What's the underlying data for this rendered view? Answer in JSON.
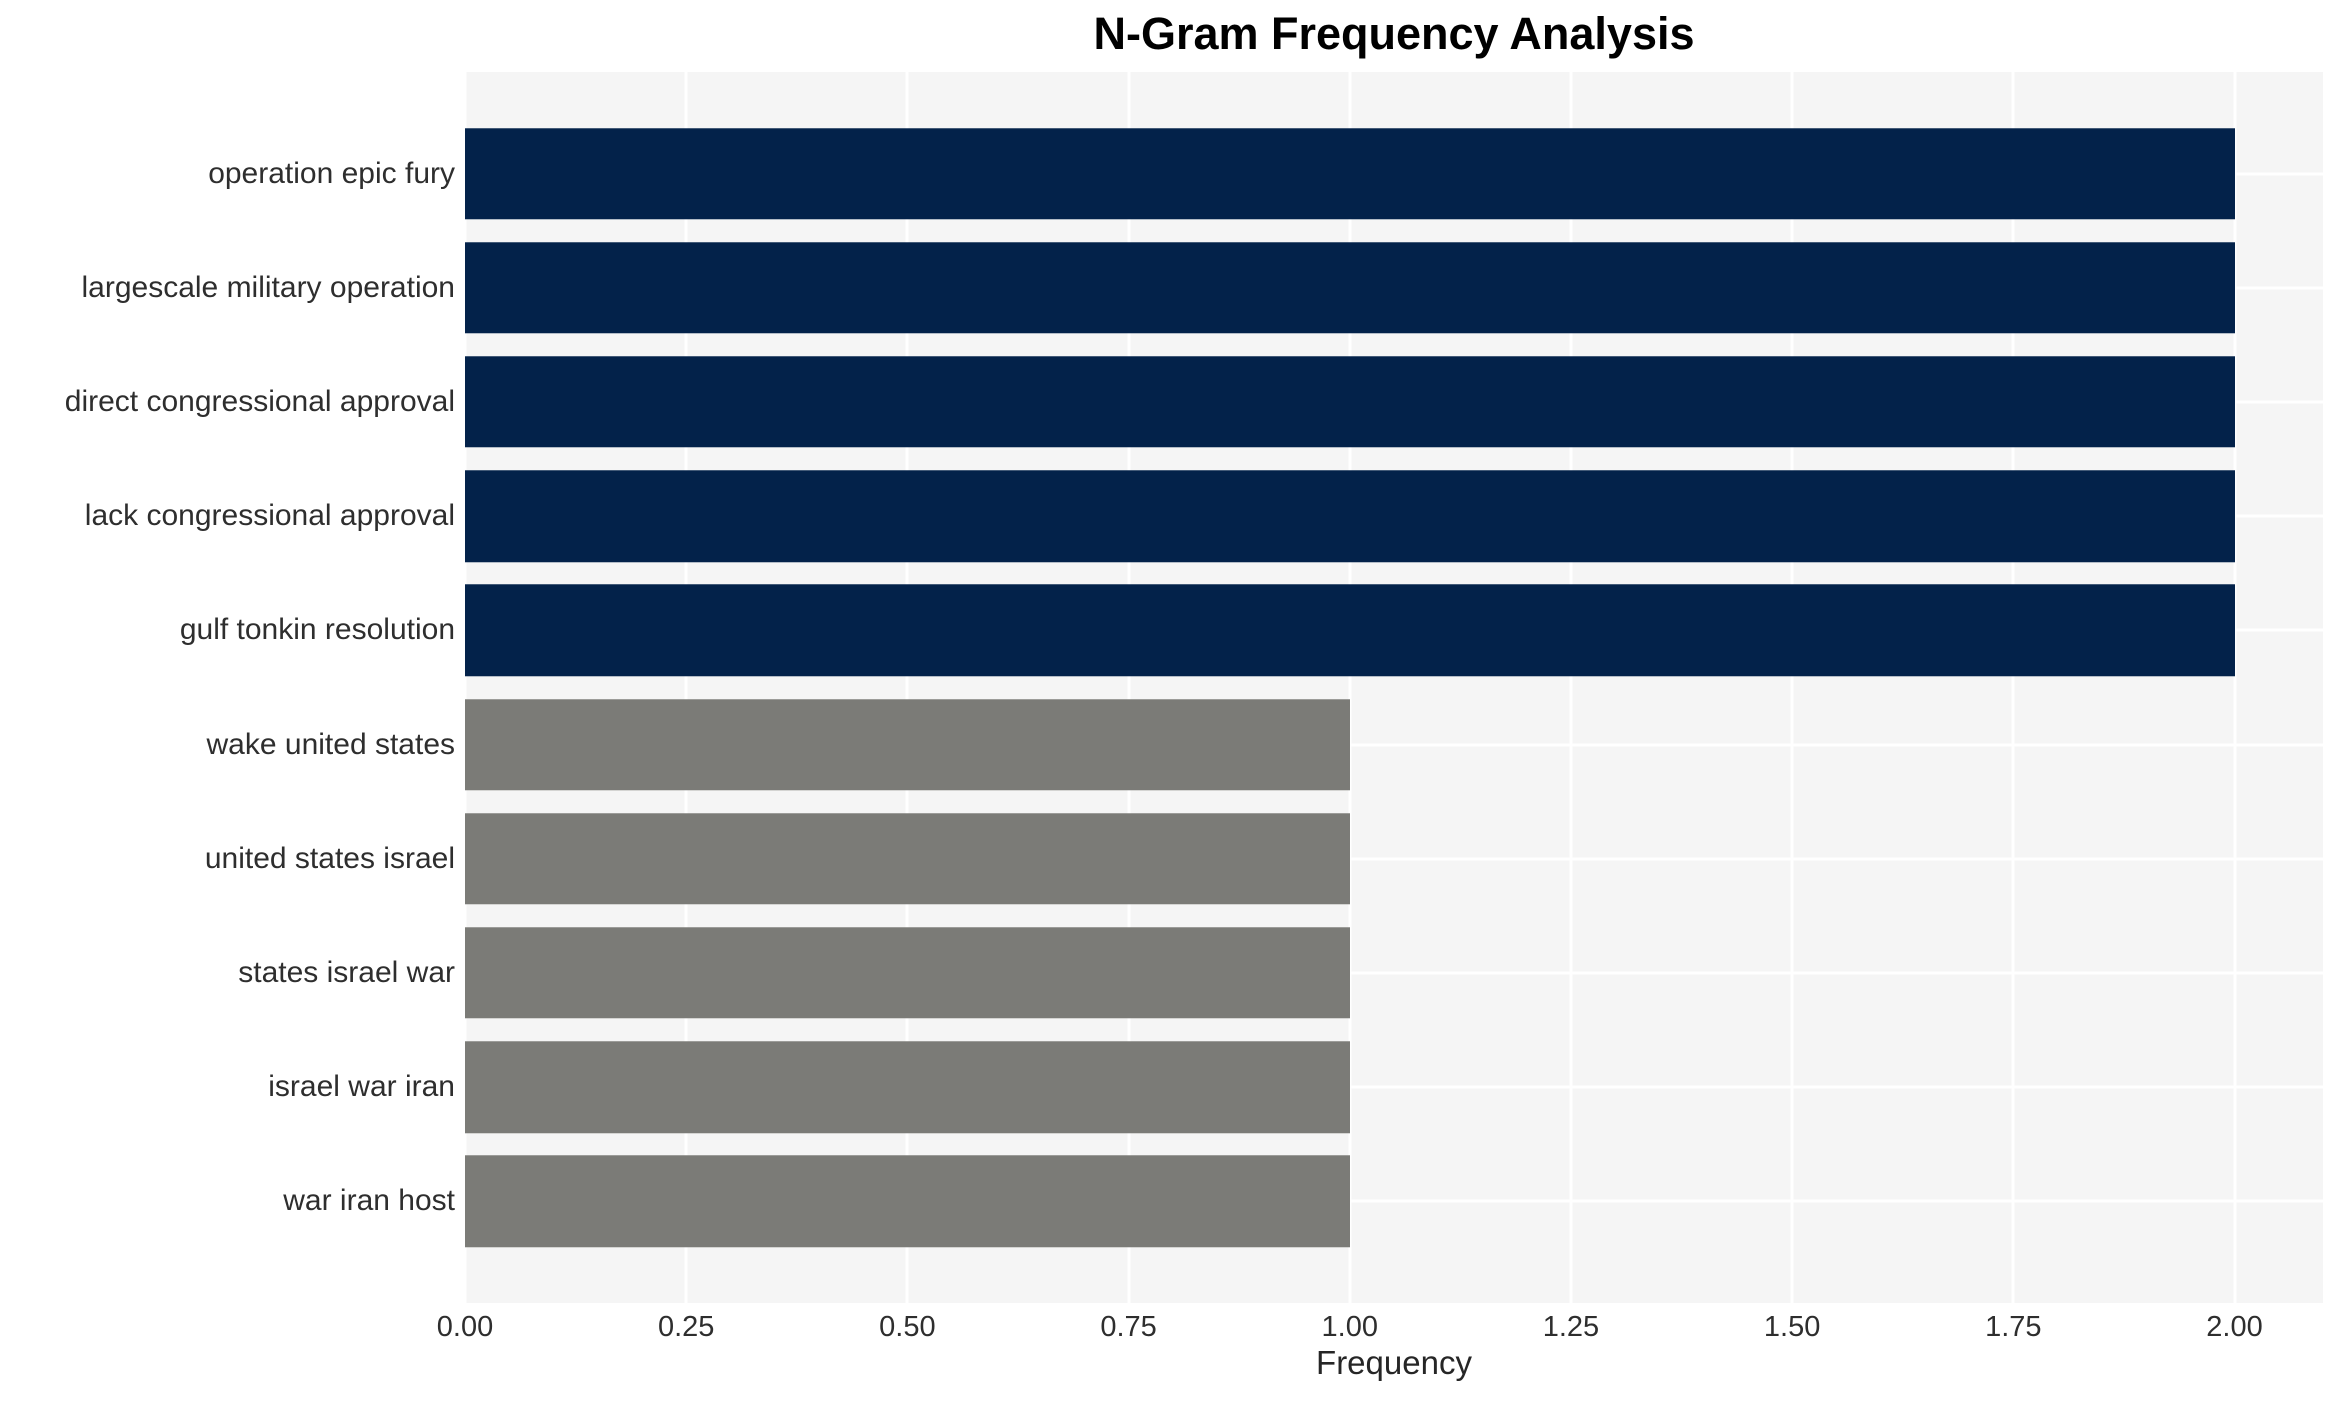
{
  "chart_data": {
    "type": "bar",
    "orientation": "horizontal",
    "title": "N-Gram Frequency Analysis",
    "xlabel": "Frequency",
    "ylabel": "",
    "categories": [
      "operation epic fury",
      "largescale military operation",
      "direct congressional approval",
      "lack congressional approval",
      "gulf tonkin resolution",
      "wake united states",
      "united states israel",
      "states israel war",
      "israel war iran",
      "war iran host"
    ],
    "values": [
      2,
      2,
      2,
      2,
      2,
      1,
      1,
      1,
      1,
      1
    ],
    "bar_colors": [
      "#03224a",
      "#03224a",
      "#03224a",
      "#03224a",
      "#03224a",
      "#7b7b77",
      "#7b7b77",
      "#7b7b77",
      "#7b7b77",
      "#7b7b77"
    ],
    "x_tick_labels": [
      "0.00",
      "0.25",
      "0.50",
      "0.75",
      "1.00",
      "1.25",
      "1.50",
      "1.75",
      "2.00"
    ],
    "x_tick_values": [
      0,
      0.25,
      0.5,
      0.75,
      1.0,
      1.25,
      1.5,
      1.75,
      2.0
    ],
    "xlim": [
      0,
      2.1
    ],
    "grid": true,
    "legend": false,
    "colors": {
      "plot_background": "#f5f5f5",
      "gridline": "#ffffff",
      "title_text": "#000000",
      "label_text": "#2e2e2e"
    }
  }
}
